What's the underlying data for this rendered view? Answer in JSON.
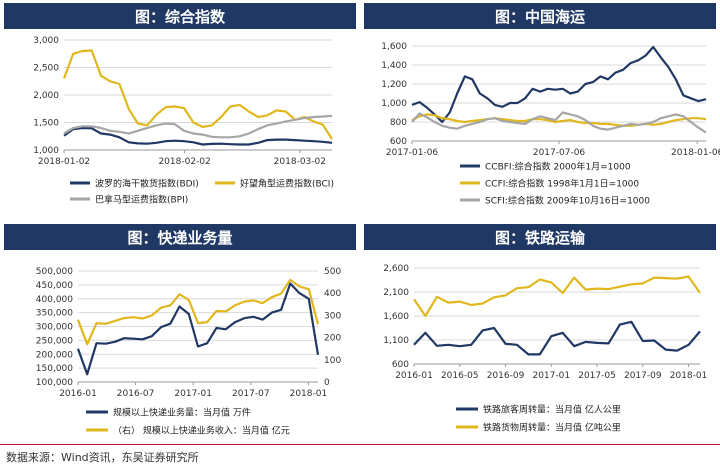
{
  "source": "数据来源：Wind资讯，东吴证券研究所",
  "chart_data": [
    {
      "id": "c1",
      "type": "line",
      "title": "图：综合指数",
      "xticks": [
        "2018-01-02",
        "2018-02-02",
        "2018-03-02"
      ],
      "ylim": [
        1000,
        3000
      ],
      "yticks": [
        1000,
        1500,
        2000,
        2500,
        3000
      ],
      "series": [
        {
          "name": "波罗的海干散货指数(BDI)",
          "color": "#1f3864",
          "values": [
            1260,
            1380,
            1400,
            1395,
            1300,
            1280,
            1230,
            1140,
            1120,
            1115,
            1130,
            1160,
            1170,
            1160,
            1140,
            1100,
            1110,
            1115,
            1105,
            1100,
            1100,
            1130,
            1180,
            1190,
            1190,
            1180,
            1170,
            1160,
            1150,
            1130
          ]
        },
        {
          "name": "好望角型运费指数(BCI)",
          "color": "#e1b71e",
          "values": [
            2300,
            2750,
            2800,
            2810,
            2350,
            2250,
            2200,
            1750,
            1480,
            1450,
            1640,
            1780,
            1790,
            1760,
            1500,
            1420,
            1450,
            1600,
            1790,
            1820,
            1700,
            1600,
            1630,
            1720,
            1700,
            1550,
            1600,
            1520,
            1460,
            1200
          ]
        },
        {
          "name": "巴拿马型运费指数(BPI)",
          "color": "#a6a6a6",
          "values": [
            1300,
            1400,
            1430,
            1430,
            1400,
            1350,
            1330,
            1300,
            1350,
            1400,
            1450,
            1480,
            1470,
            1350,
            1300,
            1280,
            1240,
            1230,
            1230,
            1250,
            1300,
            1380,
            1450,
            1480,
            1520,
            1550,
            1580,
            1600,
            1610,
            1620
          ]
        }
      ]
    },
    {
      "id": "c2",
      "type": "line",
      "title": "图：中国海运",
      "xticks": [
        "2017-01-06",
        "2017-07-06",
        "2018-01-06"
      ],
      "ylim": [
        600,
        1600
      ],
      "yticks": [
        600,
        800,
        1000,
        1200,
        1400,
        1600
      ],
      "series": [
        {
          "name": "CCBFI:综合指数  2000年1月=1000",
          "color": "#1f3864",
          "values": [
            980,
            1010,
            950,
            880,
            800,
            900,
            1100,
            1280,
            1250,
            1100,
            1050,
            980,
            960,
            1000,
            1000,
            1050,
            1150,
            1120,
            1150,
            1140,
            1150,
            1100,
            1120,
            1200,
            1220,
            1280,
            1250,
            1320,
            1350,
            1420,
            1450,
            1500,
            1590,
            1480,
            1380,
            1250,
            1080,
            1050,
            1020,
            1040
          ]
        },
        {
          "name": "CCFI:综合指数  1998年1月1日=1000",
          "color": "#e1b71e",
          "values": [
            820,
            860,
            880,
            870,
            840,
            830,
            810,
            800,
            810,
            820,
            830,
            840,
            830,
            820,
            810,
            810,
            830,
            830,
            820,
            800,
            810,
            820,
            800,
            790,
            790,
            780,
            780,
            770,
            760,
            760,
            770,
            780,
            770,
            780,
            800,
            820,
            830,
            840,
            840,
            830
          ]
        },
        {
          "name": "SCFI:综合指数  2009年10月16日=1000",
          "color": "#a6a6a6",
          "values": [
            800,
            890,
            850,
            800,
            760,
            740,
            730,
            760,
            780,
            800,
            830,
            840,
            810,
            800,
            790,
            780,
            830,
            860,
            840,
            820,
            900,
            880,
            860,
            820,
            760,
            730,
            720,
            740,
            760,
            780,
            770,
            780,
            800,
            840,
            860,
            880,
            860,
            800,
            740,
            690
          ]
        }
      ]
    },
    {
      "id": "c3",
      "type": "line",
      "title": "图：快递业务量",
      "xticks": [
        "2016-01",
        "2016-07",
        "2017-01",
        "2017-07",
        "2018-01"
      ],
      "ylim": [
        100000,
        500000
      ],
      "yticks": [
        100000,
        150000,
        200000,
        250000,
        300000,
        350000,
        400000,
        450000,
        500000
      ],
      "ylim_right": [
        0,
        500
      ],
      "yticks_right": [
        0,
        100,
        200,
        300,
        400,
        500
      ],
      "series": [
        {
          "name": "规模以上快递业务量：当月值  万件",
          "color": "#1f3864",
          "axis": "left",
          "values": [
            220000,
            128000,
            240000,
            238000,
            245000,
            258000,
            256000,
            254000,
            265000,
            298000,
            310000,
            372000,
            345000,
            228000,
            240000,
            295000,
            290000,
            315000,
            330000,
            335000,
            325000,
            350000,
            360000,
            455000,
            420000,
            400000,
            198000
          ]
        },
        {
          "name": "（右）  规模以上快递业务收入：当月值  亿元",
          "color": "#e1b71e",
          "axis": "right",
          "values": [
            280,
            170,
            265,
            262,
            275,
            288,
            292,
            286,
            300,
            335,
            345,
            395,
            370,
            265,
            270,
            320,
            318,
            345,
            362,
            368,
            355,
            382,
            398,
            460,
            430,
            418,
            260
          ]
        }
      ]
    },
    {
      "id": "c4",
      "type": "line",
      "title": "图：铁路运输",
      "xticks": [
        "2016-01",
        "2016-05",
        "2016-09",
        "2017-01",
        "2017-05",
        "2017-09",
        "2018-01"
      ],
      "ylim": [
        600,
        2600
      ],
      "yticks": [
        600,
        1100,
        1600,
        2100,
        2600
      ],
      "series": [
        {
          "name": "铁路旅客周转量：当月值  亿人公里",
          "color": "#1f3864",
          "values": [
            1000,
            1250,
            980,
            1000,
            970,
            1000,
            1300,
            1350,
            1020,
            1000,
            800,
            800,
            1180,
            1250,
            970,
            1060,
            1040,
            1030,
            1420,
            1480,
            1080,
            1090,
            900,
            880,
            1000,
            1280
          ]
        },
        {
          "name": "铁路货物周转量：当月值  亿吨公里",
          "color": "#e1b71e",
          "values": [
            1950,
            1600,
            2000,
            1880,
            1900,
            1830,
            1860,
            1990,
            2030,
            2180,
            2200,
            2360,
            2300,
            2080,
            2400,
            2150,
            2170,
            2160,
            2210,
            2260,
            2280,
            2400,
            2390,
            2380,
            2420,
            2080
          ]
        }
      ]
    }
  ]
}
